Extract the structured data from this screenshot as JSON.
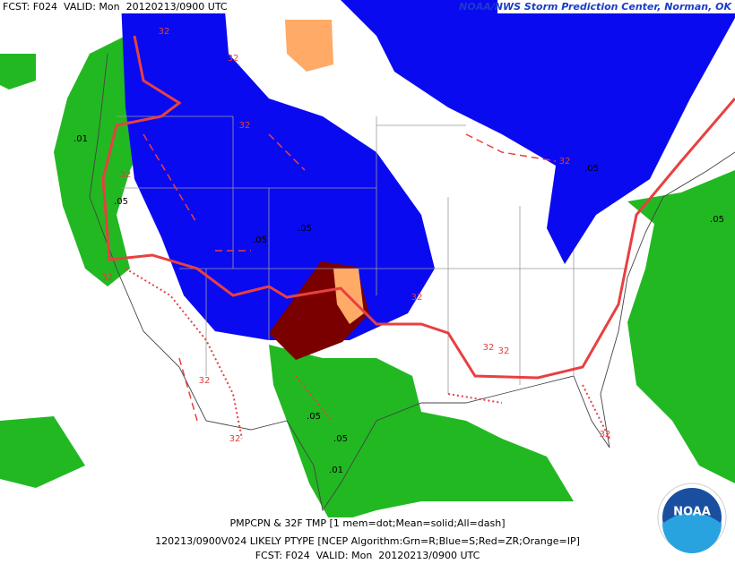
{
  "header": {
    "left": "FCST: F024  VALID: Mon  20120213/0900 UTC",
    "right": "NOAA/NWS Storm Prediction Center, Norman, OK"
  },
  "footer": {
    "line1": "PMPCPN & 32F TMP [1 mem=dot;Mean=solid;All=dash]",
    "line2": "120213/0900V024 LIKELY PTYPE [NCEP Algorithm:Grn=R;Blue=S;Red=ZR;Orange=IP]",
    "line3": "FCST: F024  VALID: Mon  20120213/0900 UTC"
  },
  "logo": {
    "text": "NOAA"
  },
  "map": {
    "contour_labels": [
      "32",
      "32",
      "32",
      "32",
      "32",
      ".01",
      ".05",
      ".05",
      ".05",
      "32",
      "32",
      "32",
      ".05",
      ".01",
      ".05",
      "32",
      "32",
      "32",
      "32",
      ".05",
      ".05"
    ]
  }
}
